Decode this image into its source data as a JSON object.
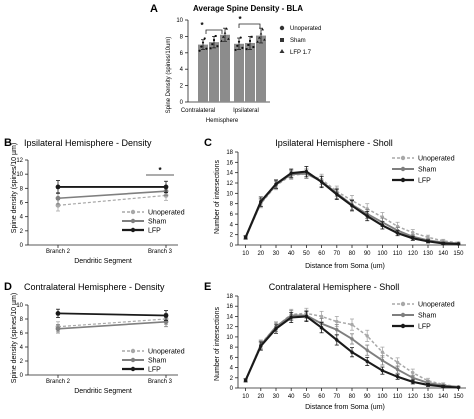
{
  "panels": {
    "A": {
      "letter": "A",
      "title": "Average Spine Density - BLA",
      "xlabel": "Hemisphere",
      "ylabel": "Spine Density (spines/10um)",
      "categories": [
        "Contralateral",
        "Ipsilateral"
      ],
      "yticks": [
        0,
        2,
        4,
        6,
        8,
        10
      ],
      "sig": [
        "*",
        "*"
      ],
      "legend": [
        "Unoperated",
        "Sham",
        "LFP 1.7"
      ]
    },
    "B": {
      "letter": "B",
      "title": "Ipsilateral Hemisphere - Density",
      "xlabel": "Dendritic Segment",
      "ylabel": "Spine density (spines/10 µm)",
      "categories": [
        "Branch 2",
        "Branch 3"
      ],
      "yticks": [
        0,
        2,
        4,
        6,
        8,
        10,
        12
      ],
      "sig": "*",
      "legend": [
        "Unoperated",
        "Sham",
        "LFP"
      ]
    },
    "C": {
      "letter": "C",
      "title": "Ipsilateral Hemisphere - Sholl",
      "xlabel": "Distance from Soma (um)",
      "ylabel": "Number of intersections",
      "yticks": [
        0,
        2,
        4,
        6,
        8,
        10,
        12,
        14,
        16,
        18
      ],
      "legend": [
        "Unoperated",
        "Sham",
        "LFP"
      ]
    },
    "D": {
      "letter": "D",
      "title": "Contralateral Hemisphere - Density",
      "xlabel": "Dendritic Segment",
      "ylabel": "Spine density (spines/10 µm)",
      "categories": [
        "Branch 2",
        "Branch 3"
      ],
      "yticks": [
        0,
        2,
        4,
        6,
        8,
        10
      ],
      "legend": [
        "Unoperated",
        "Sham",
        "LFP"
      ]
    },
    "E": {
      "letter": "E",
      "title": "Contralateral Hemisphere - Sholl",
      "xlabel": "Distance from Soma (um)",
      "ylabel": "Number of intersections",
      "yticks": [
        0,
        2,
        4,
        6,
        8,
        10,
        12,
        14,
        16,
        18
      ],
      "legend": [
        "Unoperated",
        "Sham",
        "LFP"
      ]
    }
  },
  "colors": {
    "unoperated": "#a8a8a8",
    "sham": "#7f7f7f",
    "lfp": "#1a1a1a",
    "bar": "#8c8c8c"
  },
  "chart_data": [
    {
      "type": "bar",
      "categories": [
        "Contralateral",
        "Ipsilateral"
      ],
      "series": [
        {
          "name": "Unoperated",
          "values": [
            7.0,
            7.1
          ],
          "errors": [
            0.6,
            0.7
          ]
        },
        {
          "name": "Sham",
          "values": [
            7.3,
            7.2
          ],
          "errors": [
            0.7,
            0.8
          ]
        },
        {
          "name": "LFP 1.7",
          "values": [
            8.2,
            8.1
          ],
          "errors": [
            0.8,
            0.9
          ]
        }
      ],
      "title": "Average Spine Density - BLA",
      "xlabel": "Hemisphere",
      "ylabel": "Spine Density (spines/10um)",
      "ylim": [
        0,
        10
      ],
      "legend_position": "right",
      "significance": [
        {
          "category": "Contralateral",
          "between": [
            "Sham",
            "LFP 1.7"
          ],
          "label": "*"
        },
        {
          "category": "Ipsilateral",
          "between": [
            "Unoperated",
            "LFP 1.7"
          ],
          "label": "*"
        }
      ]
    },
    {
      "type": "line",
      "categories": [
        "Branch 2",
        "Branch 3"
      ],
      "series": [
        {
          "name": "Unoperated",
          "values": [
            5.6,
            7.0
          ],
          "errors": [
            0.8,
            0.7
          ]
        },
        {
          "name": "Sham",
          "values": [
            6.6,
            7.6
          ],
          "errors": [
            0.8,
            0.6
          ]
        },
        {
          "name": "LFP",
          "values": [
            8.2,
            8.2
          ],
          "errors": [
            0.9,
            0.8
          ]
        }
      ],
      "title": "Ipsilateral Hemisphere - Density",
      "xlabel": "Dendritic Segment",
      "ylabel": "Spine density (spines/10 µm)",
      "ylim": [
        0,
        12
      ],
      "legend_position": "bottom-right",
      "significance": [
        {
          "category": "Branch 3",
          "label": "*"
        }
      ]
    },
    {
      "type": "line",
      "x": [
        10,
        20,
        30,
        40,
        50,
        60,
        70,
        80,
        90,
        100,
        110,
        120,
        130,
        140,
        150
      ],
      "series": [
        {
          "name": "Unoperated",
          "values": [
            1.4,
            8.0,
            11.5,
            13.5,
            13.8,
            12.7,
            10.4,
            8.6,
            7.0,
            5.4,
            3.6,
            2.4,
            1.5,
            0.8,
            0.4
          ],
          "errors": [
            0.3,
            0.8,
            0.8,
            0.8,
            0.9,
            1.0,
            1.0,
            1.0,
            1.0,
            0.9,
            0.8,
            0.6,
            0.4,
            0.3,
            0.2
          ]
        },
        {
          "name": "Sham",
          "values": [
            1.4,
            8.2,
            11.7,
            13.7,
            13.8,
            12.3,
            10.0,
            7.8,
            6.0,
            4.4,
            2.8,
            1.6,
            0.9,
            0.5,
            0.3
          ],
          "errors": [
            0.3,
            0.8,
            0.8,
            0.8,
            0.9,
            1.0,
            1.0,
            1.0,
            0.9,
            0.8,
            0.6,
            0.4,
            0.3,
            0.2,
            0.2
          ]
        },
        {
          "name": "LFP",
          "values": [
            1.5,
            8.4,
            11.8,
            13.9,
            14.2,
            12.2,
            9.8,
            7.6,
            5.6,
            3.8,
            2.3,
            1.3,
            0.7,
            0.3,
            0.2
          ],
          "errors": [
            0.3,
            0.9,
            0.8,
            0.8,
            1.0,
            1.1,
            1.0,
            1.0,
            0.9,
            0.7,
            0.5,
            0.4,
            0.3,
            0.2,
            0.1
          ]
        }
      ],
      "title": "Ipsilateral Hemisphere - Sholl",
      "xlabel": "Distance from Soma (um)",
      "ylabel": "Number of intersections",
      "xlim": [
        5,
        155
      ],
      "ylim": [
        0,
        18
      ],
      "legend_position": "top-right"
    },
    {
      "type": "line",
      "categories": [
        "Branch 2",
        "Branch 3"
      ],
      "series": [
        {
          "name": "Unoperated",
          "values": [
            6.9,
            8.0
          ],
          "errors": [
            0.7,
            0.8
          ]
        },
        {
          "name": "Sham",
          "values": [
            6.6,
            7.6
          ],
          "errors": [
            0.6,
            0.7
          ]
        },
        {
          "name": "LFP",
          "values": [
            8.8,
            8.5
          ],
          "errors": [
            0.6,
            0.7
          ]
        }
      ],
      "title": "Contralateral Hemisphere - Density",
      "xlabel": "Dendritic Segment",
      "ylabel": "Spine density (spines/10 µm)",
      "ylim": [
        0,
        10
      ],
      "legend_position": "bottom-right"
    },
    {
      "type": "line",
      "x": [
        10,
        20,
        30,
        40,
        50,
        60,
        70,
        80,
        90,
        100,
        110,
        120,
        130,
        140,
        150
      ],
      "series": [
        {
          "name": "Unoperated",
          "values": [
            1.5,
            8.6,
            12.0,
            14.4,
            14.6,
            14.0,
            13.0,
            12.4,
            10.2,
            7.0,
            5.0,
            3.0,
            1.4,
            0.7,
            0.2
          ],
          "errors": [
            0.3,
            0.8,
            0.9,
            1.0,
            1.0,
            1.0,
            1.0,
            1.1,
            1.1,
            1.0,
            0.9,
            0.7,
            0.5,
            0.3,
            0.2
          ]
        },
        {
          "name": "Sham",
          "values": [
            1.5,
            8.4,
            12.0,
            14.2,
            14.2,
            12.6,
            11.4,
            9.6,
            7.4,
            5.4,
            3.6,
            2.0,
            1.0,
            0.5,
            0.2
          ],
          "errors": [
            0.3,
            0.8,
            0.9,
            1.0,
            1.0,
            1.0,
            1.0,
            1.0,
            1.0,
            0.9,
            0.7,
            0.5,
            0.4,
            0.2,
            0.1
          ]
        },
        {
          "name": "LFP",
          "values": [
            1.5,
            8.2,
            11.6,
            13.8,
            14.0,
            11.8,
            9.4,
            7.0,
            5.2,
            3.4,
            2.2,
            1.2,
            0.6,
            0.3,
            0.1
          ],
          "errors": [
            0.3,
            0.8,
            0.9,
            1.0,
            1.0,
            1.0,
            1.0,
            0.9,
            0.8,
            0.7,
            0.5,
            0.4,
            0.3,
            0.2,
            0.1
          ]
        }
      ],
      "title": "Contralateral Hemisphere - Sholl",
      "xlabel": "Distance from Soma (um)",
      "ylabel": "Number of intersections",
      "xlim": [
        5,
        155
      ],
      "ylim": [
        0,
        18
      ],
      "legend_position": "top-right"
    }
  ]
}
